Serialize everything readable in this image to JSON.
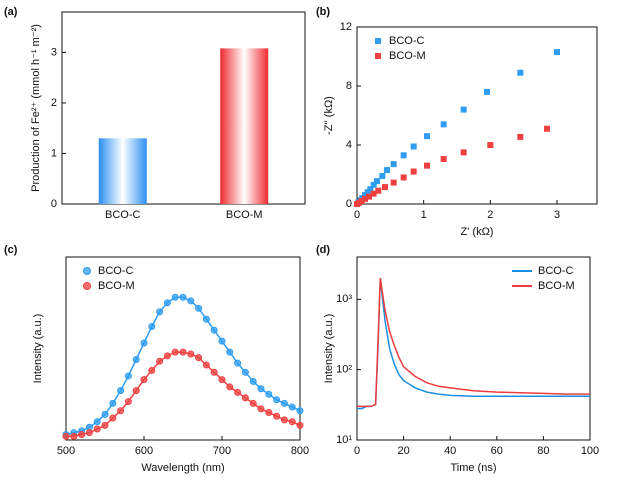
{
  "chart_data": [
    {
      "type": "bar",
      "label": "(a)",
      "ylabel": "Production of Fe²⁺ (mmol h⁻¹ m⁻²)",
      "categories": [
        "BCO-C",
        "BCO-M"
      ],
      "values": [
        1.3,
        3.08
      ],
      "colors": [
        "#2b8ff0",
        "#ee2a2f"
      ],
      "ylim": [
        0,
        3.8
      ],
      "yticks": [
        0,
        1,
        2,
        3
      ]
    },
    {
      "type": "scatter",
      "label": "(b)",
      "xlabel": "Z' (kΩ)",
      "ylabel": "-Z'' (kΩ)",
      "marker": "square",
      "legend": "upper left",
      "xlim": [
        0,
        3.6
      ],
      "xticks": [
        0,
        1,
        2,
        3
      ],
      "ylim": [
        0,
        12
      ],
      "yticks": [
        0,
        4,
        8,
        12
      ],
      "series": [
        {
          "name": "BCO-C",
          "color": "#2f9df2",
          "x": [
            0,
            0.02,
            0.05,
            0.08,
            0.12,
            0.16,
            0.2,
            0.25,
            0.3,
            0.38,
            0.45,
            0.55,
            0.7,
            0.85,
            1.05,
            1.3,
            1.6,
            1.95,
            2.45,
            3.0
          ],
          "values": [
            0,
            0.1,
            0.25,
            0.4,
            0.6,
            0.8,
            1.0,
            1.3,
            1.55,
            1.9,
            2.3,
            2.7,
            3.3,
            3.9,
            4.6,
            5.4,
            6.4,
            7.6,
            8.9,
            10.3
          ]
        },
        {
          "name": "BCO-M",
          "color": "#ef4040",
          "x": [
            0,
            0.03,
            0.07,
            0.12,
            0.18,
            0.25,
            0.32,
            0.42,
            0.55,
            0.7,
            0.85,
            1.05,
            1.3,
            1.6,
            2.0,
            2.45,
            2.85
          ],
          "values": [
            0,
            0.08,
            0.2,
            0.35,
            0.5,
            0.7,
            0.9,
            1.15,
            1.45,
            1.8,
            2.2,
            2.6,
            3.05,
            3.5,
            4.0,
            4.55,
            5.1
          ]
        }
      ]
    },
    {
      "type": "line",
      "label": "(c)",
      "xlabel": "Wavelength (nm)",
      "ylabel": "Intensity (a.u.)",
      "marker": "circle",
      "legend": "upper left",
      "xlim": [
        500,
        800
      ],
      "xticks": [
        500,
        600,
        700,
        800
      ],
      "ylim": [
        0,
        100
      ],
      "x": [
        500,
        510,
        520,
        530,
        540,
        550,
        560,
        570,
        580,
        590,
        600,
        610,
        620,
        630,
        640,
        650,
        660,
        670,
        680,
        690,
        700,
        710,
        720,
        730,
        740,
        750,
        760,
        770,
        780,
        790,
        800
      ],
      "series": [
        {
          "name": "BCO-C",
          "color": "#2f9df2",
          "values": [
            3,
            4,
            5,
            7,
            10,
            14,
            20,
            27,
            35,
            44,
            53,
            62,
            70,
            75,
            78,
            78,
            76,
            72,
            66,
            60,
            54,
            48,
            42,
            37,
            32,
            28,
            25,
            22,
            20,
            18,
            16
          ]
        },
        {
          "name": "BCO-M",
          "color": "#ef4040",
          "values": [
            2,
            2,
            3,
            4,
            6,
            8,
            12,
            16,
            21,
            27,
            33,
            38,
            43,
            46,
            48,
            48,
            47,
            45,
            41,
            37,
            33,
            29,
            26,
            23,
            20,
            17,
            15,
            13,
            11,
            10,
            8
          ]
        }
      ]
    },
    {
      "type": "line",
      "label": "(d)",
      "xlabel": "Time (ns)",
      "ylabel": "Intensity (a.u.)",
      "log_y": true,
      "legend": "upper right",
      "xlim": [
        0,
        100
      ],
      "xticks": [
        0,
        20,
        40,
        60,
        80,
        100
      ],
      "ylim": [
        10,
        4000
      ],
      "yticks": [
        {
          "value": 10,
          "label": "10¹"
        },
        {
          "value": 100,
          "label": "10²"
        },
        {
          "value": 1000,
          "label": "10³"
        }
      ],
      "x": [
        0,
        2,
        4,
        6,
        8,
        9,
        10,
        11,
        12,
        14,
        16,
        18,
        20,
        25,
        30,
        35,
        40,
        50,
        60,
        70,
        80,
        90,
        100
      ],
      "series": [
        {
          "name": "BCO-C",
          "color": "#1a8fe0",
          "values": [
            28,
            28,
            30,
            30,
            32,
            200,
            2000,
            1000,
            500,
            200,
            120,
            85,
            70,
            55,
            48,
            45,
            43,
            42,
            42,
            42,
            42,
            42,
            42
          ]
        },
        {
          "name": "BCO-M",
          "color": "#ef3b3b",
          "values": [
            30,
            30,
            30,
            30,
            32,
            250,
            2000,
            1200,
            700,
            350,
            220,
            150,
            110,
            80,
            65,
            58,
            55,
            50,
            48,
            47,
            46,
            45,
            45
          ]
        }
      ]
    }
  ]
}
